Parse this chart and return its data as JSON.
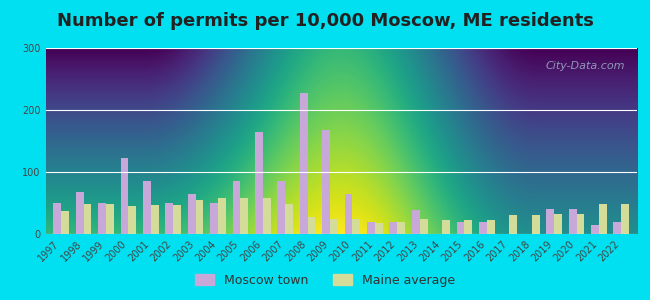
{
  "title": "Number of permits per 10,000 Moscow, ME residents",
  "years": [
    1997,
    1998,
    1999,
    2000,
    2001,
    2002,
    2003,
    2004,
    2005,
    2006,
    2007,
    2008,
    2009,
    2010,
    2011,
    2012,
    2013,
    2014,
    2015,
    2016,
    2017,
    2018,
    2019,
    2020,
    2021,
    2022
  ],
  "moscow": [
    50,
    67,
    50,
    122,
    85,
    50,
    65,
    50,
    85,
    165,
    85,
    228,
    168,
    65,
    20,
    20,
    38,
    0,
    20,
    20,
    0,
    0,
    40,
    40,
    15,
    20
  ],
  "maine": [
    37,
    48,
    48,
    45,
    47,
    47,
    55,
    58,
    58,
    58,
    48,
    28,
    25,
    25,
    18,
    20,
    25,
    22,
    22,
    22,
    30,
    30,
    32,
    32,
    48,
    48
  ],
  "moscow_color": "#c8a8d8",
  "maine_color": "#d4dc9a",
  "background_outer": "#00e0f0",
  "background_plot": "#eaf5ea",
  "ylim": [
    0,
    300
  ],
  "yticks": [
    0,
    100,
    200,
    300
  ],
  "bar_width": 0.35,
  "title_fontsize": 13,
  "tick_fontsize": 7,
  "legend_fontsize": 9,
  "watermark_text": "City-Data.com"
}
